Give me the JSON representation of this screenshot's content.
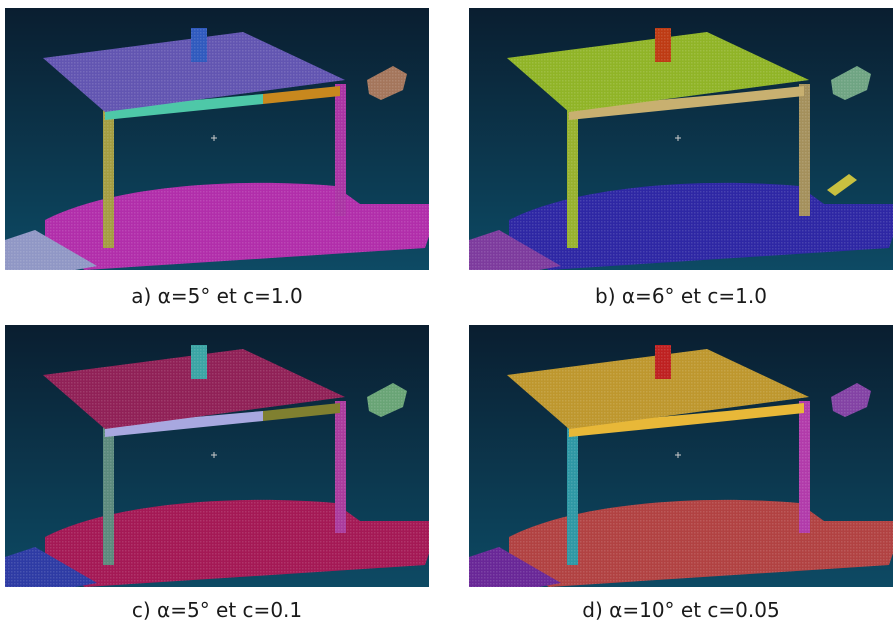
{
  "panels": [
    {
      "id": "a",
      "caption": "a) α=5° et c=1.0",
      "colors": {
        "tabletop": "#7868d8",
        "object": "#3a6ee8",
        "apron": "#4ec8a8",
        "apron2": "#c8881e",
        "leg_left": "#c8c050",
        "leg_right": "#d040c8",
        "floor": "#d838d0",
        "side_piece": "#c89070",
        "corner": "#b0b8f0",
        "stray": ""
      }
    },
    {
      "id": "b",
      "caption": "b) α=6° et c=1.0",
      "colors": {
        "tabletop": "#b0dc30",
        "object": "#e84818",
        "apron": "#c8b070",
        "apron2": "#c8b070",
        "leg_left": "#b8d838",
        "leg_right": "#c8b070",
        "floor": "#3830c8",
        "side_piece": "#88c8a0",
        "corner": "#9848c0",
        "stray": "#c8c040"
      }
    },
    {
      "id": "c",
      "caption": "c) α=5° et c=0.1",
      "colors": {
        "tabletop": "#b0286a",
        "object": "#48c8c8",
        "apron": "#a8a8e0",
        "apron2": "#808030",
        "leg_left": "#70a898",
        "leg_right": "#d048c0",
        "floor": "#c81e68",
        "side_piece": "#80c890",
        "corner": "#3848c8",
        "stray": ""
      }
    },
    {
      "id": "d",
      "caption": "d) α=10° et c=0.05",
      "colors": {
        "tabletop": "#e8b838",
        "object": "#e82828",
        "apron": "#e8b838",
        "apron2": "#e8b838",
        "leg_left": "#38b8c8",
        "leg_right": "#d848d0",
        "floor": "#d85050",
        "side_piece": "#a050c8",
        "corner": "#8030b8",
        "stray": ""
      }
    }
  ]
}
